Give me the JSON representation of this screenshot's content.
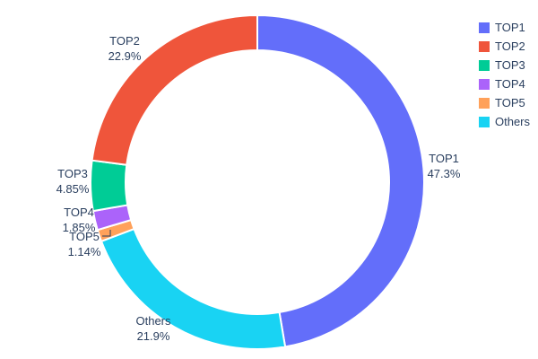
{
  "chart_data": {
    "type": "pie",
    "subtype": "donut",
    "hole": 0.79,
    "title": "",
    "labels": [
      "TOP1",
      "TOP2",
      "TOP3",
      "TOP4",
      "TOP5",
      "Others"
    ],
    "values": [
      47.3,
      22.9,
      4.85,
      1.85,
      1.14,
      21.9
    ],
    "percent_labels": [
      "47.3%",
      "22.9%",
      "4.85%",
      "1.85%",
      "1.14%",
      "21.9%"
    ],
    "colors": [
      "#636EFA",
      "#EF553B",
      "#00CC96",
      "#AB63FA",
      "#FFA15A",
      "#19D3F3"
    ],
    "clockwise_order_from_top": [
      "TOP1",
      "Others",
      "TOP5",
      "TOP4",
      "TOP3",
      "TOP2"
    ],
    "legend": {
      "position": "top-right",
      "items": [
        "TOP1",
        "TOP2",
        "TOP3",
        "TOP4",
        "TOP5",
        "Others"
      ]
    },
    "text_color": "#2a3f5f",
    "background": "#ffffff"
  }
}
